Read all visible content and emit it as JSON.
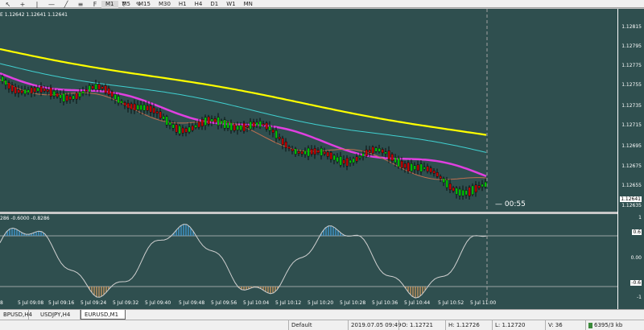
{
  "toolbar": {
    "icons": [
      "arrow-icon",
      "plus-icon",
      "vertical-line-icon",
      "horizontal-line-icon",
      "trendline-icon",
      "channel-icon",
      "fibo-icon",
      "text-icon",
      "label-icon",
      "tools-icon"
    ],
    "timeframes": [
      "M1",
      "M5",
      "M15",
      "M30",
      "H1",
      "H4",
      "D1",
      "W1",
      "MN"
    ],
    "active_timeframe": "M1"
  },
  "chart": {
    "ohlc_text": "E 1.12642 1.12641 1.12641",
    "countdown": "00:55",
    "price_labels": [
      "1.12815",
      "1.12795",
      "1.12775",
      "1.12755",
      "1.12735",
      "1.12715",
      "1.12695",
      "1.12675",
      "1.12655",
      "1.12641",
      "1.12635"
    ],
    "current_price": "1.12641",
    "indicator_label": "286 -0.6000 -0.8286",
    "indicator_scale": [
      "1",
      "0.6",
      "0.00",
      "-0.6",
      "-1"
    ],
    "time_labels": [
      "8",
      "5 Jul 09:08",
      "5 Jul 09:16",
      "5 Jul 09:24",
      "5 Jul 09:32",
      "5 Jul 09:40",
      "5 Jul 09:48",
      "5 Jul 09:56",
      "5 Jul 10:04",
      "5 Jul 10:12",
      "5 Jul 10:20",
      "5 Jul 10:28",
      "5 Jul 10:36",
      "5 Jul 10:44",
      "5 Jul 10:52",
      "5 Jul 11:00"
    ],
    "colors": {
      "background": "#2f4f4f",
      "bull": "#00cc00",
      "bear": "#cc0000",
      "ma_yellow": "#ffff00",
      "ma_cyan": "#40d0d0",
      "ma_magenta": "#e040e0",
      "ma_brown": "#c07050",
      "osc_line": "#d0d0d0",
      "osc_up": "#40a0e0",
      "osc_down": "#e0a060"
    }
  },
  "tabs": {
    "items": [
      "BPUSD,H4",
      "USDJPY,H4",
      "EURUSD,M1"
    ],
    "active": "EURUSD,M1"
  },
  "status": {
    "profile": "Default",
    "datetime": "2019.07.05 09:49",
    "open": "O: 1.12721",
    "high": "H: 1.12726",
    "low": "L: 1.12720",
    "volume": "V: 36",
    "traffic": "6395/3 kb"
  }
}
